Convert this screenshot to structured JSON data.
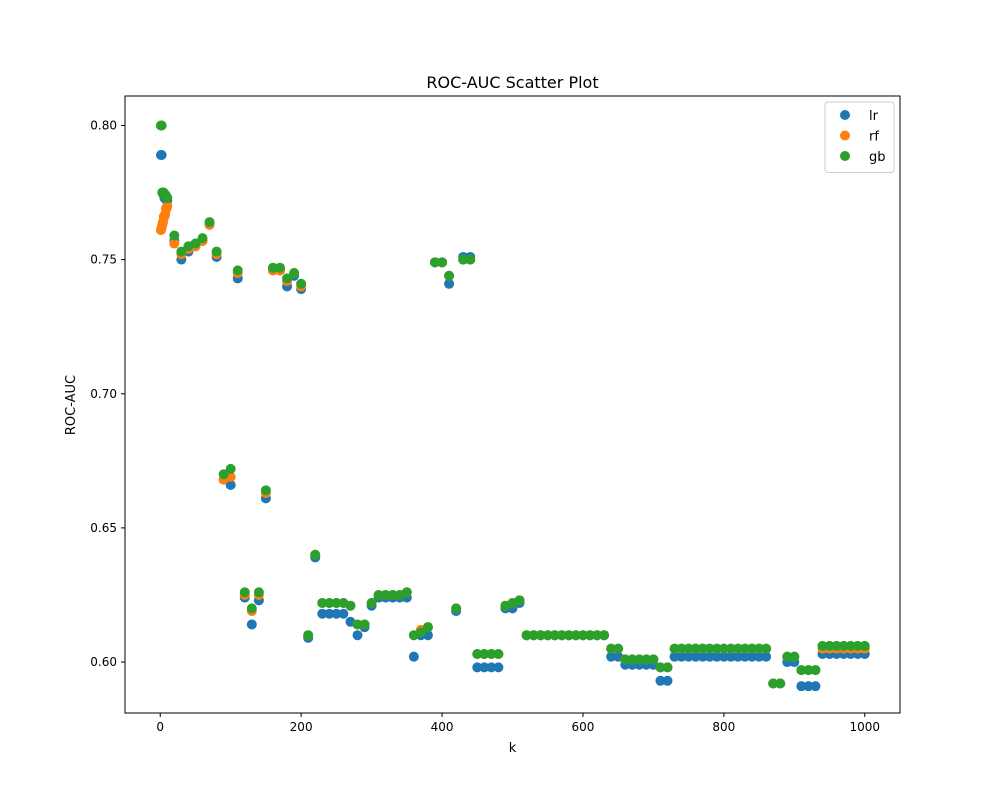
{
  "chart_data": {
    "type": "scatter",
    "title": "ROC-AUC Scatter Plot",
    "xlabel": "k",
    "ylabel": "ROC-AUC",
    "xlim": [
      -50,
      1050
    ],
    "ylim": [
      0.581,
      0.811
    ],
    "xticks": [
      0,
      200,
      400,
      600,
      800,
      1000
    ],
    "xtick_labels": [
      "0",
      "200",
      "400",
      "600",
      "800",
      "1000"
    ],
    "yticks": [
      0.6,
      0.65,
      0.7,
      0.75,
      0.8
    ],
    "ytick_labels": [
      "0.60",
      "0.65",
      "0.70",
      "0.75",
      "0.80"
    ],
    "grid": false,
    "legend_position": "top-right",
    "x": [
      1,
      2,
      3,
      4,
      5,
      6,
      7,
      8,
      9,
      10,
      20,
      30,
      40,
      50,
      60,
      70,
      80,
      90,
      100,
      110,
      120,
      130,
      140,
      150,
      160,
      170,
      180,
      190,
      200,
      210,
      220,
      230,
      240,
      250,
      260,
      270,
      280,
      290,
      300,
      310,
      320,
      330,
      340,
      350,
      360,
      370,
      380,
      390,
      400,
      410,
      420,
      430,
      440,
      450,
      460,
      470,
      480,
      490,
      500,
      510,
      520,
      530,
      540,
      550,
      560,
      570,
      580,
      590,
      600,
      610,
      620,
      630,
      640,
      650,
      660,
      670,
      680,
      690,
      700,
      710,
      720,
      730,
      740,
      750,
      760,
      770,
      780,
      790,
      800,
      810,
      820,
      830,
      840,
      850,
      860,
      870,
      880,
      890,
      900,
      910,
      920,
      930,
      940,
      950,
      960,
      970,
      980,
      990,
      1000
    ],
    "series": [
      {
        "name": "lr",
        "color": "#1f77b4",
        "values": [
          0.789,
          0.789,
          0.775,
          0.775,
          0.774,
          0.773,
          0.773,
          0.773,
          0.772,
          0.772,
          0.757,
          0.75,
          0.753,
          0.755,
          0.757,
          0.763,
          0.751,
          0.668,
          0.666,
          0.743,
          0.624,
          0.614,
          0.623,
          0.661,
          0.746,
          0.746,
          0.74,
          0.744,
          0.739,
          0.609,
          0.639,
          0.618,
          0.618,
          0.618,
          0.618,
          0.615,
          0.61,
          0.613,
          0.621,
          0.624,
          0.624,
          0.624,
          0.624,
          0.624,
          0.602,
          0.61,
          0.61,
          0.749,
          0.749,
          0.741,
          0.619,
          0.751,
          0.751,
          0.598,
          0.598,
          0.598,
          0.598,
          0.62,
          0.62,
          0.622,
          0.61,
          0.61,
          0.61,
          0.61,
          0.61,
          0.61,
          0.61,
          0.61,
          0.61,
          0.61,
          0.61,
          0.61,
          0.602,
          0.602,
          0.599,
          0.599,
          0.599,
          0.599,
          0.599,
          0.593,
          0.593,
          0.602,
          0.602,
          0.602,
          0.602,
          0.602,
          0.602,
          0.602,
          0.602,
          0.602,
          0.602,
          0.602,
          0.602,
          0.602,
          0.602,
          0.592,
          0.592,
          0.6,
          0.6,
          0.591,
          0.591,
          0.591,
          0.603,
          0.603,
          0.603,
          0.603,
          0.603,
          0.603,
          0.603
        ]
      },
      {
        "name": "rf",
        "color": "#ff7f0e",
        "values": [
          0.761,
          0.762,
          0.763,
          0.764,
          0.766,
          0.766,
          0.767,
          0.769,
          0.769,
          0.77,
          0.756,
          0.752,
          0.754,
          0.755,
          0.757,
          0.763,
          0.752,
          0.668,
          0.669,
          0.745,
          0.625,
          0.619,
          0.625,
          0.663,
          0.746,
          0.746,
          0.742,
          0.745,
          0.74,
          0.61,
          0.64,
          0.622,
          0.622,
          0.622,
          0.622,
          0.621,
          0.614,
          0.614,
          0.622,
          0.625,
          0.625,
          0.625,
          0.625,
          0.626,
          0.61,
          0.612,
          0.613,
          0.749,
          0.749,
          0.744,
          0.62,
          0.75,
          0.75,
          0.603,
          0.603,
          0.603,
          0.603,
          0.621,
          0.622,
          0.623,
          0.61,
          0.61,
          0.61,
          0.61,
          0.61,
          0.61,
          0.61,
          0.61,
          0.61,
          0.61,
          0.61,
          0.61,
          0.605,
          0.605,
          0.601,
          0.601,
          0.601,
          0.601,
          0.601,
          0.598,
          0.598,
          0.605,
          0.605,
          0.605,
          0.605,
          0.605,
          0.605,
          0.605,
          0.605,
          0.605,
          0.605,
          0.605,
          0.605,
          0.605,
          0.605,
          0.592,
          0.592,
          0.602,
          0.602,
          0.597,
          0.597,
          0.597,
          0.605,
          0.605,
          0.605,
          0.605,
          0.605,
          0.605,
          0.605
        ]
      },
      {
        "name": "gb",
        "color": "#2ca02c",
        "values": [
          0.8,
          0.8,
          0.775,
          0.775,
          0.775,
          0.774,
          0.774,
          0.774,
          0.773,
          0.773,
          0.759,
          0.753,
          0.755,
          0.756,
          0.758,
          0.764,
          0.753,
          0.67,
          0.672,
          0.746,
          0.626,
          0.62,
          0.626,
          0.664,
          0.747,
          0.747,
          0.743,
          0.745,
          0.741,
          0.61,
          0.64,
          0.622,
          0.622,
          0.622,
          0.622,
          0.621,
          0.614,
          0.614,
          0.622,
          0.625,
          0.625,
          0.625,
          0.625,
          0.626,
          0.61,
          0.611,
          0.613,
          0.749,
          0.749,
          0.744,
          0.62,
          0.75,
          0.75,
          0.603,
          0.603,
          0.603,
          0.603,
          0.621,
          0.622,
          0.623,
          0.61,
          0.61,
          0.61,
          0.61,
          0.61,
          0.61,
          0.61,
          0.61,
          0.61,
          0.61,
          0.61,
          0.61,
          0.605,
          0.605,
          0.601,
          0.601,
          0.601,
          0.601,
          0.601,
          0.598,
          0.598,
          0.605,
          0.605,
          0.605,
          0.605,
          0.605,
          0.605,
          0.605,
          0.605,
          0.605,
          0.605,
          0.605,
          0.605,
          0.605,
          0.605,
          0.592,
          0.592,
          0.602,
          0.602,
          0.597,
          0.597,
          0.597,
          0.606,
          0.606,
          0.606,
          0.606,
          0.606,
          0.606,
          0.606
        ]
      }
    ]
  }
}
